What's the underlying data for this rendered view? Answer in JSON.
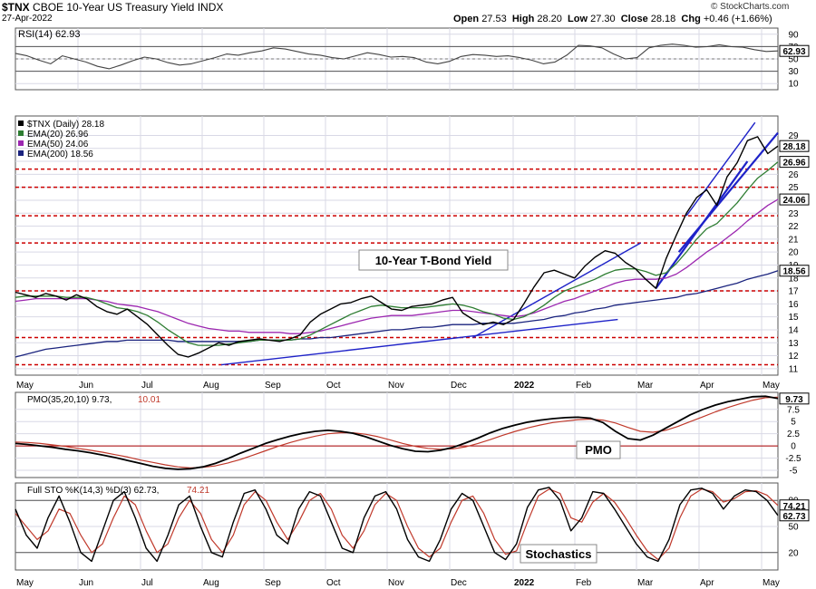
{
  "header": {
    "symbol": "$TNX",
    "name": "CBOE 10-Year US Treasury Yield",
    "exchange": "INDX",
    "date": "27-Apr-2022",
    "open_label": "Open",
    "open": "27.53",
    "high_label": "High",
    "high": "28.20",
    "low_label": "Low",
    "low": "27.30",
    "close_label": "Close",
    "close": "28.18",
    "chg_label": "Chg",
    "chg": "+0.46 (+1.66%)",
    "credit": "© StockCharts.com"
  },
  "colors": {
    "price": "#000000",
    "ema20": "#2e7d32",
    "ema50": "#9c27b0",
    "ema200": "#1a237e",
    "support": "#cc0000",
    "trend": "#1e22c8",
    "signal": "#c0392b",
    "grid": "#d9d9e6"
  },
  "chart_data": [
    {
      "type": "line",
      "panel": "rsi",
      "title": "RSI(14) 62.93",
      "ylim": [
        0,
        100
      ],
      "y_ticks": [
        10,
        30,
        50,
        70,
        90
      ],
      "levels": [
        30,
        70
      ],
      "last_label": "62.93",
      "series": [
        {
          "name": "RSI(14)",
          "values": [
            59,
            55,
            48,
            42,
            55,
            50,
            45,
            38,
            34,
            40,
            47,
            53,
            50,
            44,
            40,
            42,
            47,
            52,
            58,
            56,
            60,
            63,
            68,
            66,
            62,
            58,
            56,
            52,
            50,
            55,
            60,
            57,
            53,
            54,
            52,
            45,
            42,
            46,
            54,
            57,
            56,
            54,
            55,
            52,
            48,
            42,
            45,
            56,
            72,
            71,
            68,
            58,
            50,
            52,
            68,
            72,
            74,
            72,
            69,
            70,
            73,
            70,
            69,
            65,
            62,
            63
          ]
        }
      ]
    },
    {
      "type": "line",
      "panel": "price",
      "legend": [
        "$TNX (Daily) 28.18",
        "EMA(20) 26.96",
        "EMA(50) 24.06",
        "EMA(200) 18.56"
      ],
      "ylim": [
        10.5,
        30.5
      ],
      "y_ticks": [
        11,
        12,
        13,
        14,
        15,
        16,
        17,
        18,
        19,
        20,
        21,
        22,
        23,
        24,
        25,
        26,
        27,
        28,
        29
      ],
      "support_levels": [
        11.3,
        13.4,
        17.0,
        20.7,
        22.8,
        25.0,
        26.4
      ],
      "annotation": "10-Year T-Bond Yield",
      "last_labels": [
        {
          "value": 28.18,
          "text": "28.18"
        },
        {
          "value": 26.96,
          "text": "26.96"
        },
        {
          "value": 24.06,
          "text": "24.06"
        },
        {
          "value": 18.56,
          "text": "18.56"
        }
      ],
      "series": [
        {
          "name": "$TNX",
          "values": [
            16.9,
            16.7,
            16.5,
            16.8,
            16.6,
            16.3,
            16.7,
            16.4,
            15.8,
            15.4,
            15.2,
            15.6,
            15.0,
            14.4,
            13.6,
            12.8,
            12.1,
            11.9,
            12.2,
            12.6,
            13.0,
            12.8,
            13.1,
            13.2,
            13.3,
            13.2,
            13.1,
            13.3,
            13.6,
            14.6,
            15.2,
            15.6,
            16.0,
            16.1,
            16.4,
            16.6,
            16.1,
            15.6,
            15.5,
            15.8,
            15.9,
            16.0,
            16.3,
            16.5,
            15.3,
            14.8,
            14.4,
            14.6,
            14.4,
            14.8,
            16.0,
            17.3,
            18.4,
            18.6,
            18.3,
            18.0,
            18.9,
            19.6,
            20.1,
            19.9,
            19.2,
            18.7,
            17.9,
            17.2,
            19.5,
            21.3,
            23.0,
            24.2,
            24.8,
            23.6,
            25.8,
            26.9,
            28.6,
            28.9,
            27.6,
            28.18
          ]
        },
        {
          "name": "EMA(20)",
          "values": [
            16.5,
            16.6,
            16.6,
            16.6,
            16.6,
            16.5,
            16.5,
            16.5,
            16.3,
            16.0,
            15.7,
            15.6,
            15.4,
            15.1,
            14.6,
            14.0,
            13.5,
            13.0,
            12.8,
            12.8,
            12.8,
            12.9,
            13.0,
            13.1,
            13.2,
            13.2,
            13.2,
            13.2,
            13.3,
            13.6,
            14.0,
            14.4,
            14.8,
            15.2,
            15.5,
            15.8,
            15.9,
            15.8,
            15.7,
            15.7,
            15.7,
            15.8,
            15.9,
            16.0,
            15.9,
            15.7,
            15.4,
            15.2,
            14.9,
            14.8,
            15.0,
            15.4,
            15.9,
            16.5,
            17.0,
            17.3,
            17.6,
            17.9,
            18.3,
            18.6,
            18.7,
            18.7,
            18.5,
            18.2,
            18.4,
            19.1,
            20.0,
            21.0,
            21.8,
            22.2,
            23.0,
            23.8,
            24.8,
            25.7,
            26.3,
            26.96
          ]
        },
        {
          "name": "EMA(50)",
          "values": [
            16.2,
            16.3,
            16.4,
            16.4,
            16.4,
            16.4,
            16.4,
            16.4,
            16.3,
            16.2,
            16.0,
            15.9,
            15.8,
            15.6,
            15.4,
            15.1,
            14.8,
            14.5,
            14.3,
            14.1,
            14.0,
            13.9,
            13.9,
            13.8,
            13.8,
            13.8,
            13.8,
            13.7,
            13.7,
            13.8,
            13.9,
            14.1,
            14.3,
            14.5,
            14.7,
            14.9,
            15.0,
            15.1,
            15.1,
            15.1,
            15.2,
            15.3,
            15.4,
            15.5,
            15.5,
            15.4,
            15.3,
            15.2,
            15.1,
            15.0,
            15.1,
            15.3,
            15.6,
            15.9,
            16.2,
            16.4,
            16.7,
            17.0,
            17.3,
            17.6,
            17.8,
            17.9,
            17.9,
            17.9,
            18.0,
            18.3,
            18.8,
            19.4,
            20.0,
            20.5,
            21.1,
            21.7,
            22.4,
            23.0,
            23.6,
            24.06
          ]
        },
        {
          "name": "EMA(200)",
          "values": [
            11.9,
            12.1,
            12.3,
            12.5,
            12.6,
            12.7,
            12.8,
            12.9,
            13.0,
            13.1,
            13.1,
            13.2,
            13.2,
            13.2,
            13.2,
            13.2,
            13.1,
            13.1,
            13.1,
            13.1,
            13.1,
            13.1,
            13.1,
            13.1,
            13.2,
            13.2,
            13.2,
            13.2,
            13.3,
            13.3,
            13.4,
            13.4,
            13.5,
            13.6,
            13.7,
            13.8,
            13.9,
            14.0,
            14.0,
            14.1,
            14.2,
            14.2,
            14.3,
            14.4,
            14.4,
            14.4,
            14.5,
            14.5,
            14.5,
            14.5,
            14.6,
            14.7,
            14.8,
            15.0,
            15.1,
            15.3,
            15.4,
            15.6,
            15.7,
            15.9,
            16.0,
            16.1,
            16.2,
            16.3,
            16.4,
            16.5,
            16.7,
            16.8,
            17.0,
            17.2,
            17.4,
            17.6,
            17.9,
            18.1,
            18.3,
            18.56
          ]
        }
      ]
    },
    {
      "type": "line",
      "panel": "pmo",
      "title": "PMO(35,20,10) 9.73,",
      "title_signal": "10.01",
      "ylim": [
        -6.5,
        11
      ],
      "y_ticks": [
        -5.0,
        -2.5,
        0.0,
        2.5,
        5.0,
        7.5
      ],
      "annotation": "PMO",
      "last_label": "9.73",
      "series": [
        {
          "name": "PMO(35,20,10)",
          "values": [
            0.5,
            0.3,
            0.0,
            -0.3,
            -0.7,
            -1.0,
            -1.4,
            -1.9,
            -2.4,
            -3.0,
            -3.6,
            -4.2,
            -4.6,
            -4.8,
            -4.7,
            -4.3,
            -3.6,
            -2.6,
            -1.5,
            -0.5,
            0.5,
            1.3,
            2.0,
            2.6,
            3.0,
            3.2,
            3.0,
            2.6,
            1.9,
            1.0,
            0.1,
            -0.6,
            -1.1,
            -1.2,
            -0.9,
            -0.3,
            0.6,
            1.6,
            2.7,
            3.6,
            4.3,
            4.9,
            5.3,
            5.6,
            5.8,
            5.9,
            5.7,
            4.8,
            3.0,
            1.5,
            1.2,
            2.2,
            3.6,
            5.0,
            6.4,
            7.5,
            8.4,
            9.1,
            9.6,
            10.1,
            10.2,
            9.73
          ]
        },
        {
          "name": "Signal",
          "values": [
            0.8,
            0.7,
            0.5,
            0.2,
            -0.1,
            -0.5,
            -0.9,
            -1.3,
            -1.8,
            -2.3,
            -2.9,
            -3.4,
            -3.9,
            -4.3,
            -4.5,
            -4.4,
            -4.1,
            -3.5,
            -2.8,
            -1.9,
            -1.0,
            -0.1,
            0.7,
            1.4,
            2.0,
            2.5,
            2.7,
            2.7,
            2.4,
            1.9,
            1.2,
            0.5,
            -0.1,
            -0.5,
            -0.7,
            -0.6,
            -0.2,
            0.5,
            1.3,
            2.2,
            3.0,
            3.7,
            4.3,
            4.8,
            5.1,
            5.4,
            5.5,
            5.3,
            4.7,
            3.8,
            3.0,
            2.8,
            3.2,
            4.0,
            5.0,
            6.0,
            7.0,
            7.9,
            8.7,
            9.4,
            9.9,
            10.01
          ]
        }
      ]
    },
    {
      "type": "line",
      "panel": "stochastics",
      "title": "Full STO %K(14,3) %D(3) 62.73,",
      "title_signal": "74.21",
      "ylim": [
        0,
        100
      ],
      "y_ticks": [
        20,
        50,
        80
      ],
      "levels": [
        20,
        80
      ],
      "annotation": "Stochastics",
      "last_labels": [
        "74.21",
        "62.73"
      ],
      "series": [
        {
          "name": "%K(14,3)",
          "values": [
            70,
            40,
            25,
            60,
            85,
            55,
            20,
            10,
            45,
            80,
            90,
            60,
            25,
            10,
            40,
            75,
            85,
            50,
            20,
            15,
            55,
            88,
            92,
            70,
            40,
            30,
            70,
            90,
            85,
            55,
            25,
            20,
            60,
            85,
            90,
            70,
            35,
            15,
            10,
            35,
            70,
            88,
            80,
            50,
            20,
            12,
            30,
            72,
            92,
            95,
            80,
            45,
            60,
            90,
            88,
            70,
            50,
            30,
            15,
            10,
            35,
            75,
            92,
            94,
            88,
            70,
            85,
            92,
            90,
            80,
            62.73
          ]
        },
        {
          "name": "%D(3)",
          "values": [
            65,
            50,
            35,
            45,
            70,
            65,
            40,
            20,
            30,
            60,
            85,
            75,
            45,
            20,
            30,
            60,
            80,
            65,
            35,
            20,
            40,
            75,
            90,
            80,
            55,
            35,
            55,
            80,
            88,
            70,
            40,
            25,
            45,
            75,
            88,
            80,
            50,
            25,
            15,
            25,
            55,
            80,
            85,
            65,
            35,
            18,
            22,
            55,
            85,
            93,
            88,
            60,
            55,
            78,
            88,
            78,
            60,
            40,
            22,
            12,
            25,
            60,
            85,
            93,
            90,
            78,
            82,
            90,
            91,
            86,
            74.21
          ]
        }
      ]
    }
  ],
  "x_axis": {
    "months": [
      "May",
      "Jun",
      "Jul",
      "Aug",
      "Sep",
      "Oct",
      "Nov",
      "Dec",
      "2022",
      "Feb",
      "Mar",
      "Apr",
      "May"
    ]
  }
}
